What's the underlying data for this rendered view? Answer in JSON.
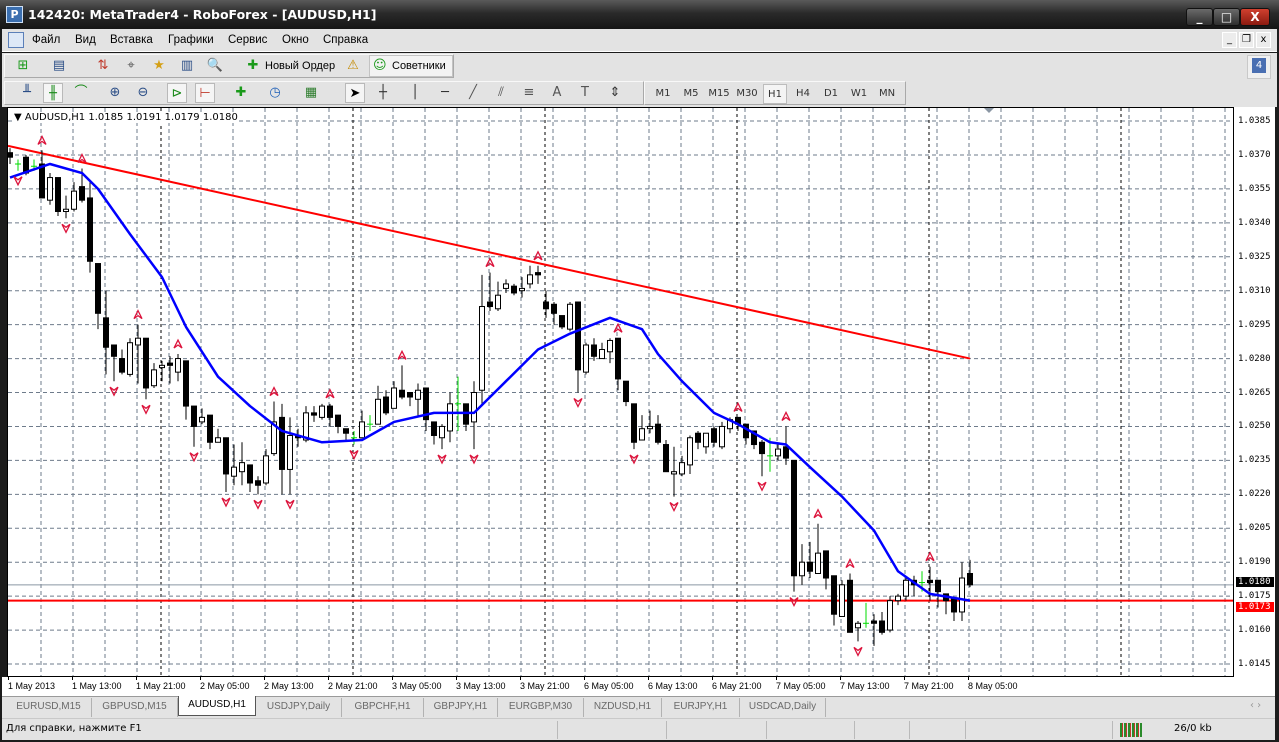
{
  "window": {
    "title": "142420: MetaTrader4 - RoboForex - [AUDUSD,H1]",
    "app_icon": "metatrader-logo-icon",
    "minimize": "_",
    "maximize": "□",
    "close": "X"
  },
  "menu": {
    "items": [
      "Файл",
      "Вид",
      "Вставка",
      "Графики",
      "Сервис",
      "Окно",
      "Справка"
    ],
    "mdi": [
      "_",
      "❐",
      "x"
    ]
  },
  "toolbar": {
    "new_order": "Новый Ордер",
    "experts": "Советники",
    "notification_count": "4",
    "timeframes": [
      "M1",
      "M5",
      "M15",
      "M30",
      "H1",
      "H4",
      "D1",
      "W1",
      "MN"
    ],
    "active_timeframe": "H1"
  },
  "chart": {
    "header": "AUDUSD,H1  1.0185 1.0191 1.0179 1.0180",
    "symbol": "AUDUSD,H1",
    "price_labels": [
      "1.0385",
      "1.0370",
      "1.0355",
      "1.0340",
      "1.0325",
      "1.0310",
      "1.0295",
      "1.0280",
      "1.0265",
      "1.0250",
      "1.0235",
      "1.0220",
      "1.0205",
      "1.0190",
      "1.0175",
      "1.0160",
      "1.0145"
    ],
    "time_labels": [
      "1 May 2013",
      "1 May 13:00",
      "1 May 21:00",
      "2 May 05:00",
      "2 May 13:00",
      "2 May 21:00",
      "3 May 05:00",
      "3 May 13:00",
      "3 May 21:00",
      "6 May 05:00",
      "6 May 13:00",
      "6 May 21:00",
      "7 May 05:00",
      "7 May 13:00",
      "7 May 21:00",
      "8 May 05:00"
    ],
    "bid_price": "1.0180",
    "line_price": "1.0173",
    "colors": {
      "bull": "#ffffff",
      "bear": "#000000",
      "doji": "#00dd00",
      "ma": "#0000ff",
      "trendline": "#ff0000",
      "hline": "#ff0000",
      "fractal": "#dc143c",
      "grid": "#6e7b8b"
    }
  },
  "chart_data": {
    "type": "candlestick",
    "ylim": [
      1.0145,
      1.0388
    ],
    "candles_ohlc": [
      [
        1.0371,
        1.0373,
        1.0366,
        1.0369
      ],
      [
        1.0366,
        1.0368,
        1.0363,
        1.0366
      ],
      [
        1.0369,
        1.037,
        1.0361,
        1.0362
      ],
      [
        1.0365,
        1.0368,
        1.0363,
        1.0365
      ],
      [
        1.0366,
        1.0372,
        1.0351,
        1.0351
      ],
      [
        1.035,
        1.0362,
        1.0348,
        1.036
      ],
      [
        1.036,
        1.036,
        1.0343,
        1.0345
      ],
      [
        1.0345,
        1.0352,
        1.0342,
        1.0346
      ],
      [
        1.0346,
        1.0358,
        1.0345,
        1.0354
      ],
      [
        1.0356,
        1.0364,
        1.0349,
        1.035
      ],
      [
        1.0351,
        1.0358,
        1.0318,
        1.0323
      ],
      [
        1.0322,
        1.0322,
        1.0293,
        1.03
      ],
      [
        1.0298,
        1.031,
        1.0273,
        1.0285
      ],
      [
        1.0286,
        1.0286,
        1.027,
        1.0281
      ],
      [
        1.028,
        1.0284,
        1.0273,
        1.0274
      ],
      [
        1.0273,
        1.0289,
        1.0272,
        1.0287
      ],
      [
        1.0286,
        1.0295,
        1.0269,
        1.0289
      ],
      [
        1.0289,
        1.0289,
        1.0262,
        1.0267
      ],
      [
        1.0268,
        1.0278,
        1.0267,
        1.0275
      ],
      [
        1.0276,
        1.0279,
        1.027,
        1.0277
      ],
      [
        1.0278,
        1.0281,
        1.0269,
        1.0277
      ],
      [
        1.0274,
        1.0282,
        1.027,
        1.028
      ],
      [
        1.0279,
        1.0279,
        1.0253,
        1.0259
      ],
      [
        1.0259,
        1.0259,
        1.0241,
        1.025
      ],
      [
        1.0252,
        1.0258,
        1.0251,
        1.0254
      ],
      [
        1.0255,
        1.0255,
        1.024,
        1.0243
      ],
      [
        1.0243,
        1.0249,
        1.0243,
        1.0245
      ],
      [
        1.0245,
        1.0245,
        1.0221,
        1.0229
      ],
      [
        1.0228,
        1.0242,
        1.0224,
        1.0232
      ],
      [
        1.023,
        1.0243,
        1.0224,
        1.0234
      ],
      [
        1.0233,
        1.0233,
        1.0221,
        1.0225
      ],
      [
        1.0226,
        1.0228,
        1.022,
        1.0224
      ],
      [
        1.0225,
        1.024,
        1.0224,
        1.0237
      ],
      [
        1.0238,
        1.0261,
        1.0237,
        1.0252
      ],
      [
        1.0254,
        1.026,
        1.022,
        1.0231
      ],
      [
        1.0231,
        1.0254,
        1.022,
        1.0246
      ],
      [
        1.0246,
        1.0249,
        1.0241,
        1.0245
      ],
      [
        1.0244,
        1.0259,
        1.0243,
        1.0256
      ],
      [
        1.0256,
        1.0259,
        1.0252,
        1.0255
      ],
      [
        1.0254,
        1.026,
        1.0253,
        1.0259
      ],
      [
        1.0259,
        1.026,
        1.025,
        1.0254
      ],
      [
        1.0255,
        1.0255,
        1.0247,
        1.025
      ],
      [
        1.0249,
        1.0249,
        1.0244,
        1.0247
      ],
      [
        1.0245,
        1.0248,
        1.0242,
        1.0245
      ],
      [
        1.0245,
        1.0257,
        1.0245,
        1.0252
      ],
      [
        1.0251,
        1.0255,
        1.0248,
        1.0251
      ],
      [
        1.0251,
        1.0268,
        1.0251,
        1.0262
      ],
      [
        1.0263,
        1.0266,
        1.0255,
        1.0256
      ],
      [
        1.0258,
        1.027,
        1.0258,
        1.0267
      ],
      [
        1.0266,
        1.0277,
        1.0262,
        1.0263
      ],
      [
        1.0265,
        1.0265,
        1.0259,
        1.0263
      ],
      [
        1.0262,
        1.0269,
        1.0254,
        1.0266
      ],
      [
        1.0267,
        1.0267,
        1.0248,
        1.0253
      ],
      [
        1.0252,
        1.0252,
        1.0242,
        1.0246
      ],
      [
        1.0245,
        1.0251,
        1.024,
        1.025
      ],
      [
        1.0248,
        1.0265,
        1.0243,
        1.026
      ],
      [
        1.026,
        1.0272,
        1.0248,
        1.026
      ],
      [
        1.026,
        1.026,
        1.0248,
        1.0251
      ],
      [
        1.0252,
        1.027,
        1.024,
        1.0265
      ],
      [
        1.0266,
        1.0317,
        1.0259,
        1.0303
      ],
      [
        1.0305,
        1.0318,
        1.0301,
        1.0303
      ],
      [
        1.0302,
        1.0314,
        1.0301,
        1.0308
      ],
      [
        1.0311,
        1.0315,
        1.0309,
        1.0313
      ],
      [
        1.0312,
        1.0313,
        1.0308,
        1.0309
      ],
      [
        1.031,
        1.0316,
        1.0307,
        1.0311
      ],
      [
        1.0313,
        1.0321,
        1.0311,
        1.0317
      ],
      [
        1.0318,
        1.0321,
        1.0313,
        1.0317
      ],
      [
        1.0305,
        1.031,
        1.0298,
        1.0302
      ],
      [
        1.0304,
        1.0305,
        1.0295,
        1.03
      ],
      [
        1.0299,
        1.0299,
        1.0293,
        1.0294
      ],
      [
        1.0293,
        1.0305,
        1.0292,
        1.0304
      ],
      [
        1.0305,
        1.0305,
        1.0265,
        1.0275
      ],
      [
        1.0274,
        1.0287,
        1.0273,
        1.0286
      ],
      [
        1.0286,
        1.0289,
        1.0279,
        1.0281
      ],
      [
        1.028,
        1.0287,
        1.028,
        1.0284
      ],
      [
        1.0283,
        1.0289,
        1.0278,
        1.0288
      ],
      [
        1.0289,
        1.0289,
        1.0266,
        1.0271
      ],
      [
        1.027,
        1.027,
        1.0259,
        1.0261
      ],
      [
        1.026,
        1.026,
        1.024,
        1.0243
      ],
      [
        1.0244,
        1.0255,
        1.0244,
        1.0249
      ],
      [
        1.0249,
        1.0257,
        1.0247,
        1.025
      ],
      [
        1.0251,
        1.0255,
        1.0242,
        1.0243
      ],
      [
        1.0242,
        1.0244,
        1.023,
        1.023
      ],
      [
        1.0229,
        1.0241,
        1.0219,
        1.023
      ],
      [
        1.0229,
        1.0237,
        1.0228,
        1.0234
      ],
      [
        1.0233,
        1.0246,
        1.0229,
        1.0245
      ],
      [
        1.0247,
        1.0248,
        1.024,
        1.0243
      ],
      [
        1.0241,
        1.0247,
        1.0238,
        1.0247
      ],
      [
        1.0249,
        1.025,
        1.0241,
        1.0243
      ],
      [
        1.0241,
        1.0252,
        1.024,
        1.025
      ],
      [
        1.0249,
        1.0254,
        1.0247,
        1.0253
      ],
      [
        1.0254,
        1.0254,
        1.0248,
        1.0251
      ],
      [
        1.0251,
        1.0251,
        1.0242,
        1.0245
      ],
      [
        1.0248,
        1.0248,
        1.024,
        1.0242
      ],
      [
        1.0243,
        1.0244,
        1.0228,
        1.0238
      ],
      [
        1.0237,
        1.0245,
        1.023,
        1.0237
      ],
      [
        1.0237,
        1.0242,
        1.0235,
        1.024
      ],
      [
        1.0241,
        1.025,
        1.0233,
        1.0236
      ],
      [
        1.0235,
        1.0235,
        1.0177,
        1.0184
      ],
      [
        1.0184,
        1.0198,
        1.018,
        1.019
      ],
      [
        1.019,
        1.0199,
        1.0183,
        1.0186
      ],
      [
        1.0185,
        1.0207,
        1.0185,
        1.0194
      ],
      [
        1.0195,
        1.0195,
        1.0178,
        1.0183
      ],
      [
        1.0184,
        1.0184,
        1.0162,
        1.0167
      ],
      [
        1.0166,
        1.0182,
        1.0166,
        1.018
      ],
      [
        1.0182,
        1.0185,
        1.0159,
        1.0159
      ],
      [
        1.0161,
        1.0164,
        1.0155,
        1.0163
      ],
      [
        1.0163,
        1.0172,
        1.0161,
        1.0163
      ],
      [
        1.0164,
        1.0167,
        1.0153,
        1.0163
      ],
      [
        1.0164,
        1.0168,
        1.0158,
        1.0159
      ],
      [
        1.016,
        1.0175,
        1.0159,
        1.0173
      ],
      [
        1.0173,
        1.0176,
        1.0171,
        1.0175
      ],
      [
        1.0175,
        1.0183,
        1.0173,
        1.0182
      ],
      [
        1.0182,
        1.0184,
        1.0175,
        1.018
      ],
      [
        1.0181,
        1.0186,
        1.0177,
        1.0181
      ],
      [
        1.0182,
        1.0188,
        1.0173,
        1.0181
      ],
      [
        1.0182,
        1.0182,
        1.017,
        1.0177
      ],
      [
        1.0176,
        1.0176,
        1.0167,
        1.0173
      ],
      [
        1.0174,
        1.0174,
        1.0164,
        1.0168
      ],
      [
        1.0168,
        1.019,
        1.0164,
        1.0183
      ],
      [
        1.0185,
        1.0191,
        1.0179,
        1.018
      ]
    ],
    "moving_average": [
      [
        0,
        1.036
      ],
      [
        5,
        1.0366
      ],
      [
        9,
        1.0362
      ],
      [
        11,
        1.0355
      ],
      [
        15,
        1.0335
      ],
      [
        19,
        1.0316
      ],
      [
        22,
        1.0294
      ],
      [
        26,
        1.0272
      ],
      [
        30,
        1.0259
      ],
      [
        34,
        1.0248
      ],
      [
        39,
        1.0243
      ],
      [
        44,
        1.0244
      ],
      [
        48,
        1.0252
      ],
      [
        53,
        1.0256
      ],
      [
        58,
        1.0256
      ],
      [
        62,
        1.027
      ],
      [
        66,
        1.0284
      ],
      [
        70,
        1.0291
      ],
      [
        75,
        1.0298
      ],
      [
        79,
        1.0293
      ],
      [
        81,
        1.0282
      ],
      [
        84,
        1.027
      ],
      [
        88,
        1.0256
      ],
      [
        91,
        1.0251
      ],
      [
        95,
        1.0243
      ],
      [
        97,
        1.0242
      ],
      [
        100,
        1.0232
      ],
      [
        104,
        1.0219
      ],
      [
        108,
        1.0204
      ],
      [
        111,
        1.0186
      ],
      [
        115,
        1.0176
      ],
      [
        120,
        1.0173
      ]
    ],
    "trendline": [
      [
        0,
        1.0374
      ],
      [
        120,
        1.028
      ]
    ],
    "horizontal_line": 1.0173,
    "fractals_up": [
      4,
      9,
      16,
      21,
      33,
      40,
      49,
      60,
      66,
      76,
      91,
      97,
      101,
      105,
      115
    ],
    "fractals_down": [
      1,
      7,
      13,
      17,
      23,
      27,
      31,
      35,
      43,
      54,
      58,
      71,
      78,
      83,
      94,
      98,
      106
    ]
  },
  "tabs": {
    "items": [
      "EURUSD,M15",
      "GBPUSD,M15",
      "AUDUSD,H1",
      "USDJPY,Daily",
      "GBPCHF,H1",
      "GBPJPY,H1",
      "EURGBP,M30",
      "NZDUSD,H1",
      "EURJPY,H1",
      "USDCAD,Daily"
    ],
    "active": "AUDUSD,H1"
  },
  "status": {
    "help": "Для справки, нажмите F1",
    "traffic": "26/0 kb",
    "connection_icon": "connection-bars-icon"
  }
}
